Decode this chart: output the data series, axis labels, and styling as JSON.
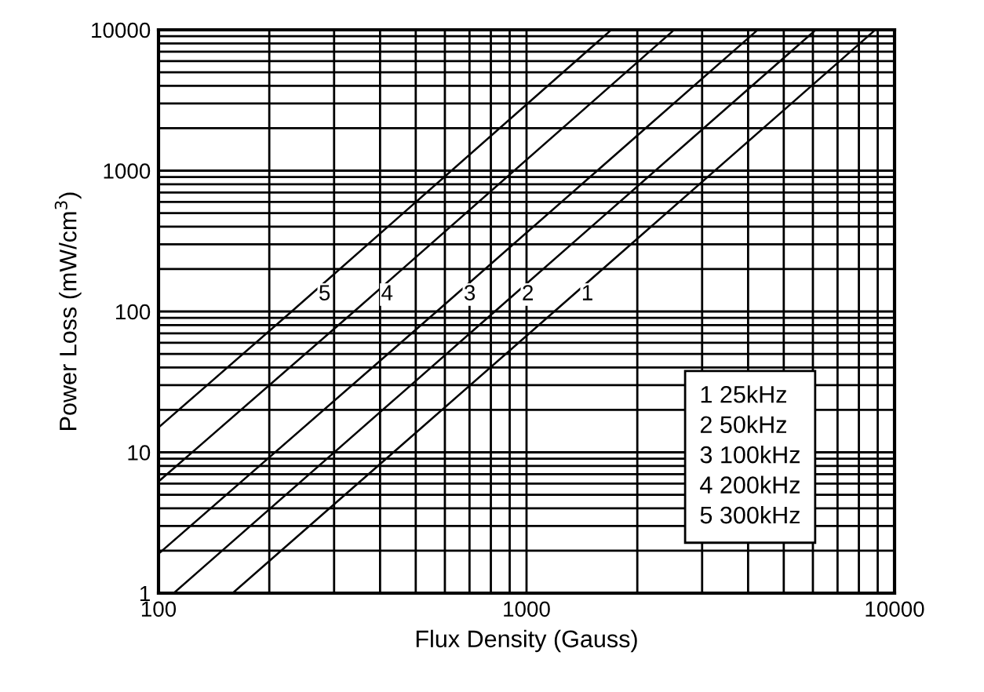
{
  "chart_data": {
    "type": "line",
    "xlabel": "Flux Density (Gauss)",
    "ylabel": "Power Loss (mW/cm$^{3}$)",
    "log": "xy",
    "xlim": [
      100,
      10000
    ],
    "ylim": [
      1,
      10000
    ],
    "xticks": [
      100,
      1000,
      10000
    ],
    "yticks": [
      1,
      10,
      100,
      1000,
      10000
    ],
    "grid": true,
    "series": [
      {
        "name": "1",
        "color": "#000000",
        "x": [
          159,
          1190,
          8870
        ],
        "values": [
          1,
          100,
          10000
        ]
      },
      {
        "name": "2",
        "color": "#000000",
        "x": [
          110,
          820,
          6110
        ],
        "values": [
          1,
          100,
          10000
        ]
      },
      {
        "name": "3",
        "color": "#000000",
        "x": [
          100,
          570,
          4250
        ],
        "values": [
          1.9,
          100,
          10000
        ]
      },
      {
        "name": "4",
        "color": "#000000",
        "x": [
          100,
          340,
          2520
        ],
        "values": [
          6.2,
          100,
          10000
        ]
      },
      {
        "name": "5",
        "color": "#000000",
        "x": [
          100,
          230,
          1700
        ],
        "values": [
          15,
          100,
          10000
        ]
      }
    ],
    "annotations": [
      "1 25kHz",
      "2 50kHz",
      "3 100kHz",
      "4 200kHz",
      "5 300kHz"
    ]
  }
}
